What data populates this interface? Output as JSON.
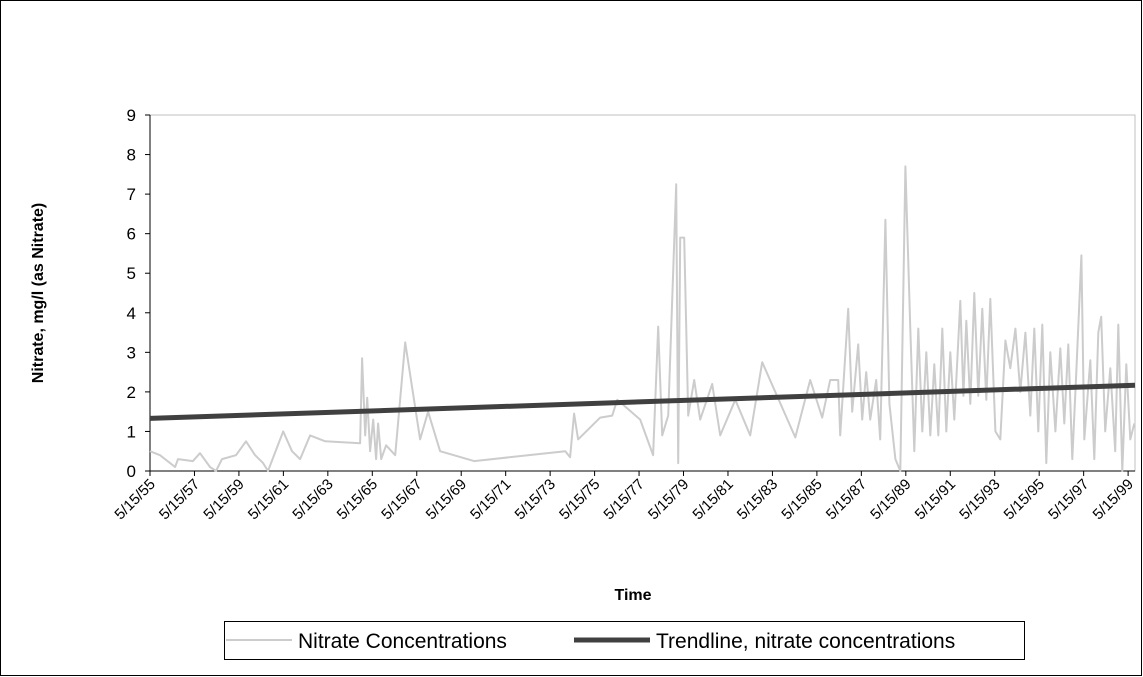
{
  "chart_data": {
    "type": "line",
    "xlabel": "Time",
    "ylabel": "Nitrate, mg/l (as Nitrate)",
    "xlim": [
      1955.37,
      1999.68
    ],
    "ylim": [
      0,
      9
    ],
    "yticks": [
      0,
      1,
      2,
      3,
      4,
      5,
      6,
      7,
      8,
      9
    ],
    "xticks": [
      {
        "value": 1955.37,
        "label": "5/15/55"
      },
      {
        "value": 1957.37,
        "label": "5/15/57"
      },
      {
        "value": 1959.37,
        "label": "5/15/59"
      },
      {
        "value": 1961.37,
        "label": "5/15/61"
      },
      {
        "value": 1963.37,
        "label": "5/15/63"
      },
      {
        "value": 1965.37,
        "label": "5/15/65"
      },
      {
        "value": 1967.37,
        "label": "5/15/67"
      },
      {
        "value": 1969.37,
        "label": "5/15/69"
      },
      {
        "value": 1971.37,
        "label": "5/15/71"
      },
      {
        "value": 1973.37,
        "label": "5/15/73"
      },
      {
        "value": 1975.37,
        "label": "5/15/75"
      },
      {
        "value": 1977.37,
        "label": "5/15/77"
      },
      {
        "value": 1979.37,
        "label": "5/15/79"
      },
      {
        "value": 1981.37,
        "label": "5/15/81"
      },
      {
        "value": 1983.37,
        "label": "5/15/83"
      },
      {
        "value": 1985.37,
        "label": "5/15/85"
      },
      {
        "value": 1987.37,
        "label": "5/15/87"
      },
      {
        "value": 1989.37,
        "label": "5/15/89"
      },
      {
        "value": 1991.37,
        "label": "5/15/91"
      },
      {
        "value": 1993.37,
        "label": "5/15/93"
      },
      {
        "value": 1995.37,
        "label": "5/15/95"
      },
      {
        "value": 1997.37,
        "label": "5/15/97"
      },
      {
        "value": 1999.37,
        "label": "5/15/99"
      }
    ],
    "grid": false,
    "legend": "bottom",
    "series": [
      {
        "name": "Nitrate Concentrations",
        "color": "#cccccc",
        "width": 2,
        "x": [
          1955.37,
          1955.82,
          1956.5,
          1956.63,
          1957.3,
          1957.62,
          1958.07,
          1958.34,
          1958.61,
          1959.24,
          1959.69,
          1960.1,
          1960.46,
          1960.68,
          1961.36,
          1961.76,
          1962.12,
          1962.57,
          1963.25,
          1964.82,
          1964.91,
          1965.05,
          1965.14,
          1965.27,
          1965.41,
          1965.54,
          1965.63,
          1965.77,
          1965.99,
          1966.4,
          1966.85,
          1967.52,
          1967.88,
          1968.42,
          1969.95,
          1974.05,
          1974.27,
          1974.45,
          1974.63,
          1975.62,
          1976.16,
          1976.39,
          1977.42,
          1978.0,
          1978.23,
          1978.41,
          1978.68,
          1979.04,
          1979.13,
          1979.22,
          1979.4,
          1979.58,
          1979.85,
          1980.12,
          1980.66,
          1981.02,
          1981.7,
          1982.37,
          1982.91,
          1984.4,
          1985.07,
          1985.61,
          1985.97,
          1986.33,
          1986.42,
          1986.78,
          1986.96,
          1987.23,
          1987.41,
          1987.59,
          1987.77,
          1988.04,
          1988.22,
          1988.45,
          1988.63,
          1988.9,
          1989.12,
          1989.35,
          1989.57,
          1989.75,
          1989.93,
          1990.11,
          1990.29,
          1990.47,
          1990.65,
          1990.83,
          1991.01,
          1991.19,
          1991.37,
          1991.55,
          1991.82,
          1991.96,
          1992.09,
          1992.27,
          1992.45,
          1992.63,
          1992.81,
          1992.99,
          1993.17,
          1993.4,
          1993.62,
          1993.85,
          1994.07,
          1994.3,
          1994.52,
          1994.75,
          1994.97,
          1995.15,
          1995.33,
          1995.51,
          1995.69,
          1995.87,
          1996.1,
          1996.32,
          1996.5,
          1996.68,
          1996.86,
          1997.04,
          1997.27,
          1997.4,
          1997.67,
          1997.85,
          1998.03,
          1998.16,
          1998.34,
          1998.57,
          1998.79,
          1998.93,
          1999.11,
          1999.29,
          1999.47,
          1999.65
        ],
        "values": [
          0.5,
          0.4,
          0.1,
          0.3,
          0.25,
          0.45,
          0.1,
          0.0,
          0.3,
          0.4,
          0.75,
          0.4,
          0.2,
          0.0,
          1.0,
          0.5,
          0.3,
          0.9,
          0.75,
          0.7,
          2.85,
          0.9,
          1.85,
          0.5,
          1.3,
          0.3,
          1.2,
          0.3,
          0.65,
          0.4,
          3.25,
          0.8,
          1.5,
          0.5,
          0.25,
          0.5,
          0.35,
          1.45,
          0.8,
          1.35,
          1.4,
          1.8,
          1.3,
          0.4,
          3.65,
          0.9,
          1.4,
          7.25,
          0.2,
          5.9,
          5.9,
          1.4,
          2.3,
          1.3,
          2.2,
          0.9,
          1.8,
          0.9,
          2.75,
          0.85,
          2.3,
          1.35,
          2.3,
          2.3,
          0.9,
          4.1,
          1.5,
          3.2,
          1.3,
          2.5,
          1.3,
          2.3,
          0.8,
          6.35,
          1.7,
          0.3,
          0.0,
          7.7,
          3.6,
          0.5,
          3.6,
          1.0,
          3.0,
          0.9,
          2.7,
          0.9,
          3.6,
          1.0,
          3.0,
          1.3,
          4.3,
          1.9,
          3.8,
          1.7,
          4.5,
          1.9,
          4.1,
          1.8,
          4.35,
          1.0,
          0.8,
          3.3,
          2.6,
          3.6,
          2.0,
          3.5,
          1.4,
          3.6,
          1.0,
          3.7,
          0.2,
          3.0,
          1.0,
          3.1,
          1.2,
          3.2,
          0.3,
          2.5,
          5.45,
          0.8,
          2.8,
          0.3,
          3.5,
          3.9,
          1.0,
          2.6,
          0.5,
          3.7,
          0.0,
          2.7,
          0.8,
          1.2
        ]
      },
      {
        "name": "Trendline, nitrate concentrations",
        "color": "#404040",
        "width": 5,
        "x": [
          1955.37,
          1999.68
        ],
        "values": [
          1.33,
          2.17
        ]
      }
    ]
  }
}
